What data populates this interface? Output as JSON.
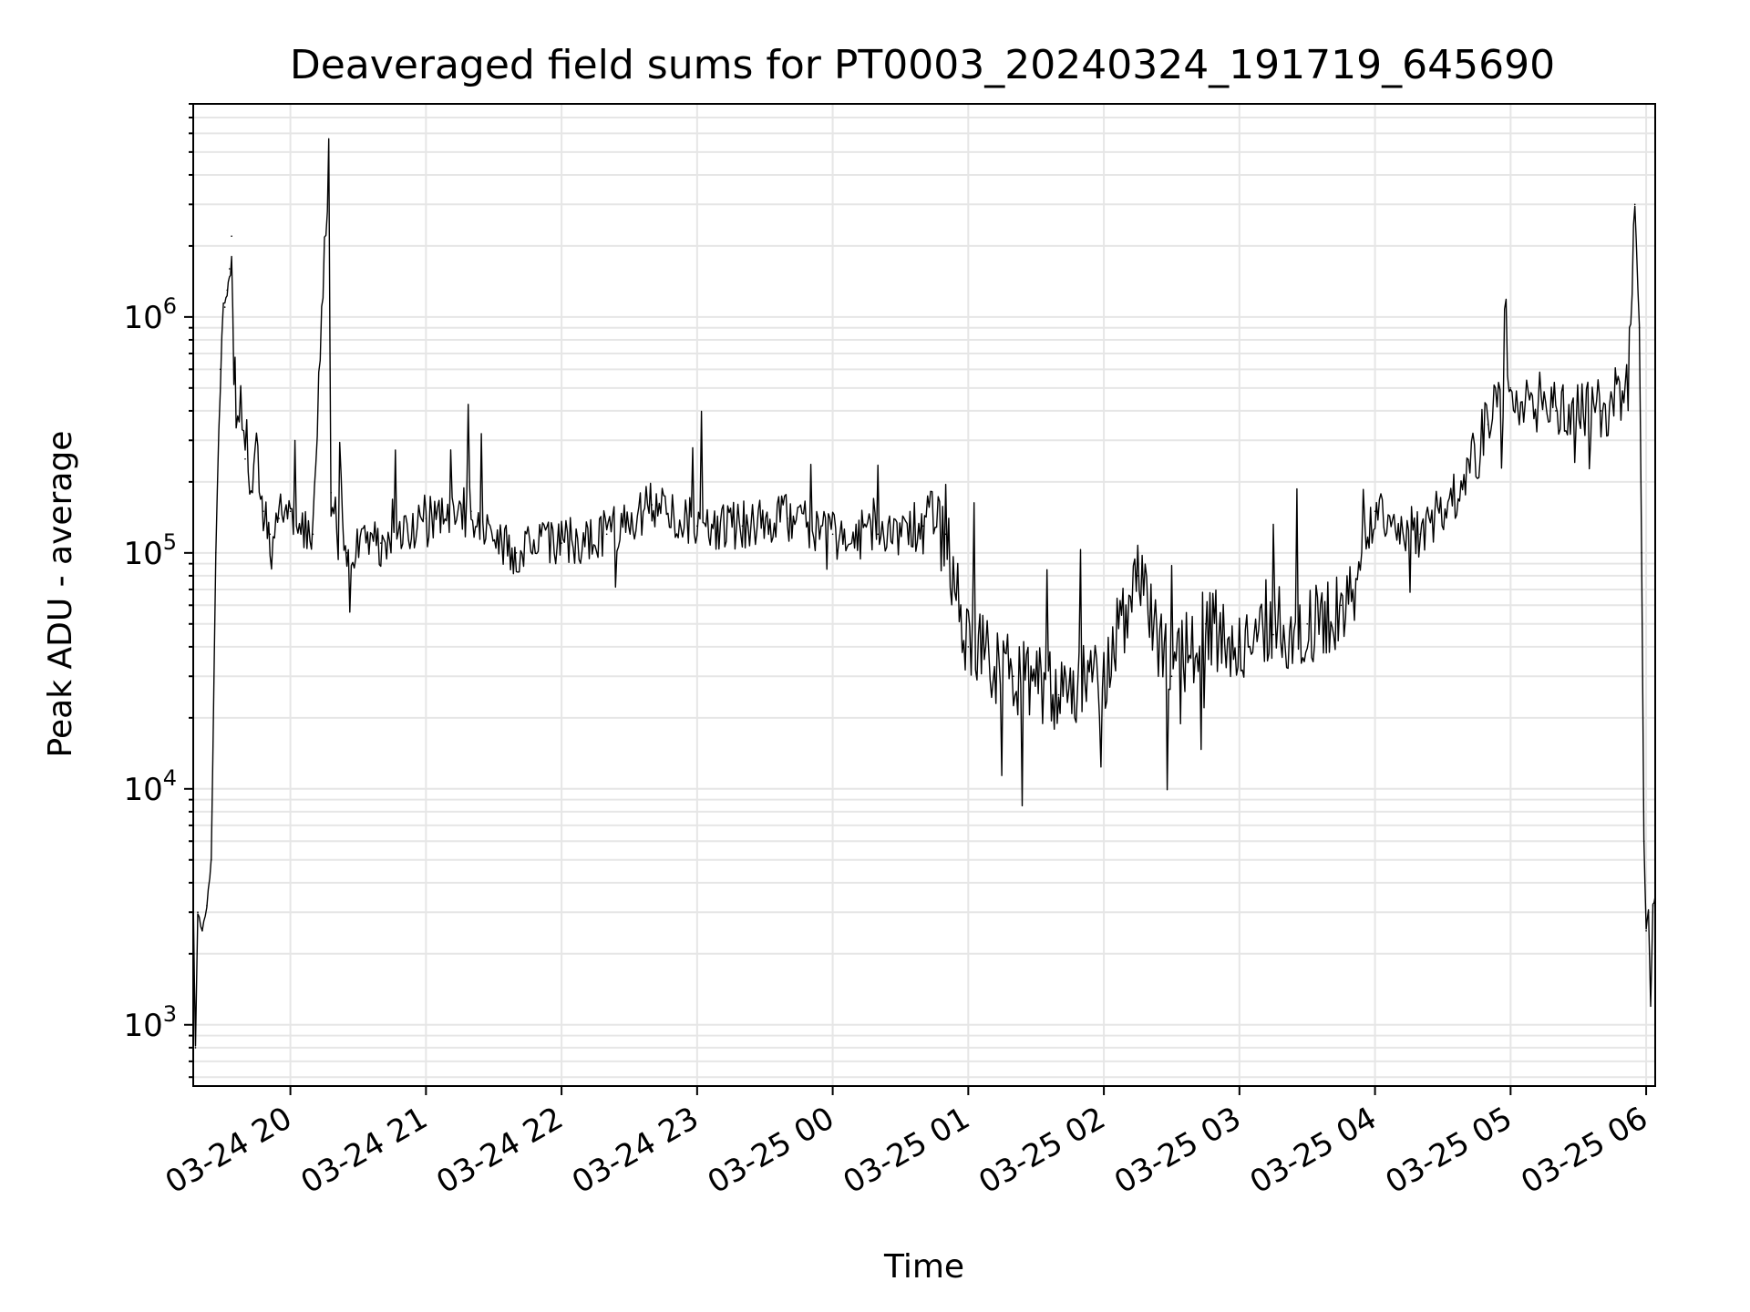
{
  "chart_data": {
    "type": "line",
    "title": "Deaveraged field sums for PT0003_20240324_191719_645690",
    "xlabel": "Time",
    "ylabel": "Peak ADU - average",
    "yscale": "log",
    "ylim": [
      550,
      8000000
    ],
    "xlim": [
      "2024-03-24 19:17",
      "2024-03-25 06:04"
    ],
    "grid": true,
    "line_color": "#000000",
    "grid_color": "#e6e6e6",
    "x_ticks": [
      {
        "value": "2024-03-24 20:00",
        "label": "03-24 20"
      },
      {
        "value": "2024-03-24 21:00",
        "label": "03-24 21"
      },
      {
        "value": "2024-03-24 22:00",
        "label": "03-24 22"
      },
      {
        "value": "2024-03-24 23:00",
        "label": "03-24 23"
      },
      {
        "value": "2024-03-25 00:00",
        "label": "03-25 00"
      },
      {
        "value": "2024-03-25 01:00",
        "label": "03-25 01"
      },
      {
        "value": "2024-03-25 02:00",
        "label": "03-25 02"
      },
      {
        "value": "2024-03-25 03:00",
        "label": "03-25 03"
      },
      {
        "value": "2024-03-25 04:00",
        "label": "03-25 04"
      },
      {
        "value": "2024-03-25 05:00",
        "label": "03-25 05"
      },
      {
        "value": "2024-03-25 06:00",
        "label": "03-25 06"
      }
    ],
    "y_ticks": [
      {
        "value": 1000,
        "base": "10",
        "exp": "3"
      },
      {
        "value": 10000,
        "base": "10",
        "exp": "4"
      },
      {
        "value": 100000,
        "base": "10",
        "exp": "5"
      },
      {
        "value": 1000000,
        "base": "10",
        "exp": "6"
      }
    ],
    "series": [
      {
        "x": [
          "2024-03-24 19:17",
          "2024-03-24 19:18",
          "2024-03-24 19:19",
          "2024-03-24 19:21",
          "2024-03-24 19:23",
          "2024-03-24 19:25",
          "2024-03-24 19:27",
          "2024-03-24 19:29",
          "2024-03-24 19:31",
          "2024-03-24 19:32",
          "2024-03-24 19:33",
          "2024-03-24 19:34",
          "2024-03-24 19:35",
          "2024-03-24 19:36",
          "2024-03-24 19:38",
          "2024-03-24 19:40",
          "2024-03-24 19:42",
          "2024-03-24 19:45",
          "2024-03-24 19:48",
          "2024-03-24 19:51",
          "2024-03-24 19:55",
          "2024-03-24 20:00",
          "2024-03-24 20:10",
          "2024-03-24 20:17",
          "2024-03-24 20:18",
          "2024-03-24 20:25",
          "2024-03-24 20:40",
          "2024-03-24 21:00",
          "2024-03-24 21:20",
          "2024-03-24 21:40",
          "2024-03-24 22:00",
          "2024-03-24 22:20",
          "2024-03-24 22:40",
          "2024-03-24 23:00",
          "2024-03-24 23:20",
          "2024-03-24 23:40",
          "2024-03-25 00:00",
          "2024-03-25 00:20",
          "2024-03-25 00:40",
          "2024-03-25 00:50",
          "2024-03-25 01:00",
          "2024-03-25 01:20",
          "2024-03-25 01:40",
          "2024-03-25 02:00",
          "2024-03-25 02:15",
          "2024-03-25 02:30",
          "2024-03-25 02:45",
          "2024-03-25 03:00",
          "2024-03-25 03:15",
          "2024-03-25 03:30",
          "2024-03-25 03:45",
          "2024-03-25 04:00",
          "2024-03-25 04:20",
          "2024-03-25 04:40",
          "2024-03-25 04:50",
          "2024-03-25 05:00",
          "2024-03-25 05:20",
          "2024-03-25 05:40",
          "2024-03-25 05:52",
          "2024-03-25 05:55",
          "2024-03-25 05:57",
          "2024-03-25 05:58",
          "2024-03-25 05:59",
          "2024-03-25 06:00",
          "2024-03-25 06:01",
          "2024-03-25 06:02",
          "2024-03-25 06:03",
          "2024-03-25 06:04"
        ],
        "y": [
          3500,
          800,
          3000,
          2500,
          3200,
          5000,
          100000,
          600000,
          1100000,
          1300000,
          1600000,
          2200000,
          600000,
          350000,
          500000,
          250000,
          180000,
          300000,
          150000,
          120000,
          140000,
          150000,
          120000,
          5000000,
          180000,
          100000,
          110000,
          140000,
          150000,
          100000,
          110000,
          120000,
          160000,
          130000,
          130000,
          140000,
          120000,
          120000,
          130000,
          120000,
          40000,
          30000,
          25000,
          30000,
          80000,
          30000,
          50000,
          40000,
          45000,
          50000,
          60000,
          150000,
          120000,
          200000,
          350000,
          500000,
          400000,
          400000,
          500000,
          3000000,
          900000,
          100000,
          6000,
          2500,
          3000,
          1200,
          3200,
          3500
        ]
      }
    ]
  }
}
